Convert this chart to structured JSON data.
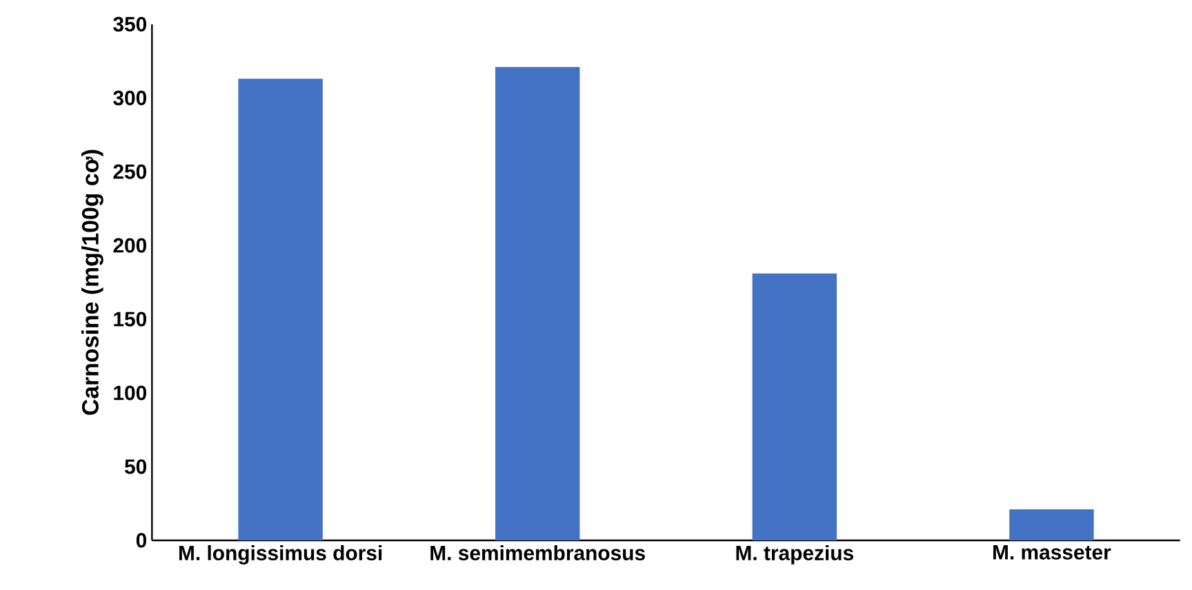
{
  "chart_data": {
    "type": "bar",
    "ylabel": "Carnosine (mg/100g cơ)",
    "categories": [
      "M. longissimus dorsi",
      "M. semimembranosus",
      "M. trapezius",
      "M. masseter"
    ],
    "values": [
      313,
      321,
      181,
      21
    ],
    "color": "#4472c4",
    "ylim": [
      0,
      350
    ],
    "yticks": [
      0,
      50,
      100,
      150,
      200,
      250,
      300,
      350
    ],
    "grid": false
  }
}
